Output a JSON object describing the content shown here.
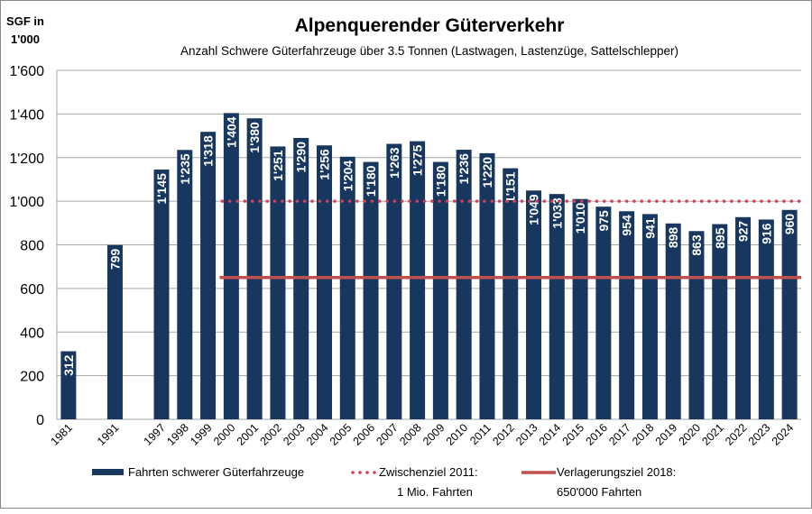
{
  "chart_data": {
    "type": "bar",
    "title": "Alpenquerender Güterverkehr",
    "subtitle": "Anzahl Schwere Güterfahrzeuge über 3.5 Tonnen (Lastwagen, Lastenzüge, Sattelschlepper)",
    "ylabel_line1": "SGF in",
    "ylabel_line2": "1'000",
    "ylim": [
      0,
      1600
    ],
    "yticks": [
      0,
      200,
      400,
      600,
      800,
      1000,
      1200,
      1400,
      1600
    ],
    "ytick_labels": [
      "0",
      "200",
      "400",
      "600",
      "800",
      "1'000",
      "1'200",
      "1'400",
      "1'600"
    ],
    "grid": true,
    "legend_placement": "bottom",
    "categories": [
      "1981",
      "1991",
      "1997",
      "1998",
      "1999",
      "2000",
      "2001",
      "2002",
      "2003",
      "2004",
      "2005",
      "2006",
      "2007",
      "2008",
      "2009",
      "2010",
      "2011",
      "2012",
      "2013",
      "2014",
      "2015",
      "2016",
      "2017",
      "2018",
      "2019",
      "2020",
      "2021",
      "2022",
      "2023",
      "2024"
    ],
    "series": [
      {
        "name": "Fahrten schwerer Güterfahrzeuge",
        "type": "bar",
        "color": "#17375E",
        "values": [
          312,
          799,
          1145,
          1235,
          1318,
          1404,
          1380,
          1251,
          1290,
          1256,
          1204,
          1180,
          1263,
          1275,
          1180,
          1236,
          1220,
          1151,
          1049,
          1033,
          1010,
          975,
          954,
          941,
          898,
          863,
          895,
          927,
          916,
          960
        ],
        "data_labels": [
          "312",
          "799",
          "1'145",
          "1'235",
          "1'318",
          "1'404",
          "1'380",
          "1'251",
          "1'290",
          "1'256",
          "1'204",
          "1'180",
          "1'263",
          "1'275",
          "1'180",
          "1'236",
          "1'220",
          "1'151",
          "1'049",
          "1'033",
          "1'010",
          "975",
          "954",
          "941",
          "898",
          "863",
          "895",
          "927",
          "916",
          "960"
        ]
      },
      {
        "name": "Zwischenziel 2011:",
        "name_line2": "1 Mio. Fahrten",
        "type": "line",
        "style": "dotted",
        "color": "#D0405A",
        "value": 1000,
        "from": "2000",
        "to": "2024"
      },
      {
        "name": "Verlagerungsziel 2018:",
        "name_line2": "650'000 Fahrten",
        "type": "line",
        "style": "solid",
        "color": "#C0504D",
        "value": 650,
        "from": "2000",
        "to": "2024"
      }
    ]
  }
}
